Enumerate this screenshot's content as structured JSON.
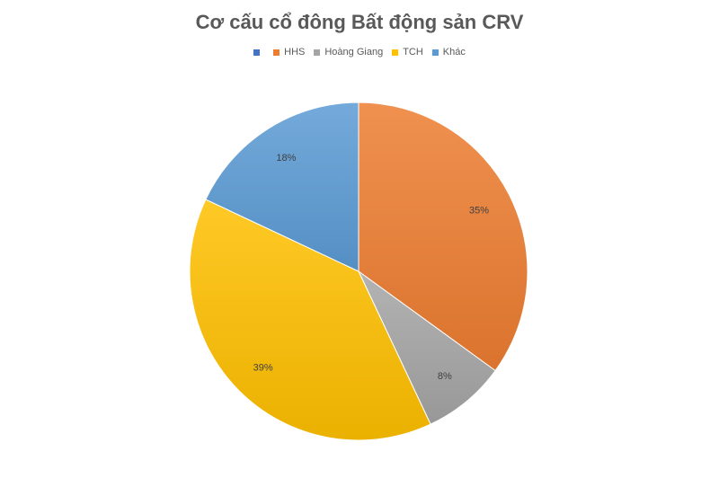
{
  "chart_data": {
    "type": "pie",
    "title": "Cơ cấu cổ đông Bất động sản CRV",
    "legend_position": "top",
    "slices": [
      {
        "label": "",
        "value": 0,
        "value_label": "",
        "color": "#4472c4"
      },
      {
        "label": "HHS",
        "value": 35,
        "value_label": "35%",
        "color": "#ed7d31"
      },
      {
        "label": "Hoàng Giang",
        "value": 8,
        "value_label": "8%",
        "color": "#a5a5a5"
      },
      {
        "label": "TCH",
        "value": 39,
        "value_label": "39%",
        "color": "#ffc000"
      },
      {
        "label": "Khác",
        "value": 18,
        "value_label": "18%",
        "color": "#5b9bd5"
      }
    ]
  }
}
